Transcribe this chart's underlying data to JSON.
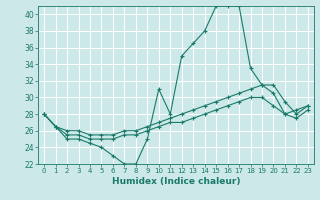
{
  "title": "",
  "xlabel": "Humidex (Indice chaleur)",
  "ylabel": "",
  "xlim": [
    -0.5,
    23.5
  ],
  "ylim": [
    22,
    41
  ],
  "yticks": [
    22,
    24,
    26,
    28,
    30,
    32,
    34,
    36,
    38,
    40
  ],
  "xticks": [
    0,
    1,
    2,
    3,
    4,
    5,
    6,
    7,
    8,
    9,
    10,
    11,
    12,
    13,
    14,
    15,
    16,
    17,
    18,
    19,
    20,
    21,
    22,
    23
  ],
  "bg_color": "#cce8e8",
  "line_color": "#1a7a6a",
  "grid_color": "#ffffff",
  "series": {
    "main": {
      "x": [
        0,
        1,
        2,
        3,
        4,
        5,
        6,
        7,
        8,
        9,
        10,
        11,
        12,
        13,
        14,
        15,
        16,
        17,
        18,
        19,
        20,
        21,
        22,
        23
      ],
      "y": [
        28,
        26.5,
        25,
        25,
        24.5,
        24,
        23,
        22,
        22,
        25,
        31,
        28,
        35,
        36.5,
        38,
        41,
        41,
        41,
        33.5,
        31.5,
        30.5,
        28,
        28.5,
        29
      ]
    },
    "upper": {
      "x": [
        0,
        1,
        2,
        3,
        4,
        5,
        6,
        7,
        8,
        9,
        10,
        11,
        12,
        13,
        14,
        15,
        16,
        17,
        18,
        19,
        20,
        21,
        22,
        23
      ],
      "y": [
        28,
        26.5,
        26,
        26,
        25.5,
        25.5,
        25.5,
        26,
        26,
        26.5,
        27,
        27.5,
        28,
        28.5,
        29,
        29.5,
        30,
        30.5,
        31,
        31.5,
        31.5,
        29.5,
        28,
        29
      ]
    },
    "lower": {
      "x": [
        0,
        1,
        2,
        3,
        4,
        5,
        6,
        7,
        8,
        9,
        10,
        11,
        12,
        13,
        14,
        15,
        16,
        17,
        18,
        19,
        20,
        21,
        22,
        23
      ],
      "y": [
        28,
        26.5,
        25.5,
        25.5,
        25,
        25,
        25,
        25.5,
        25.5,
        26,
        26.5,
        27,
        27,
        27.5,
        28,
        28.5,
        29,
        29.5,
        30,
        30,
        29,
        28,
        27.5,
        28.5
      ]
    }
  }
}
